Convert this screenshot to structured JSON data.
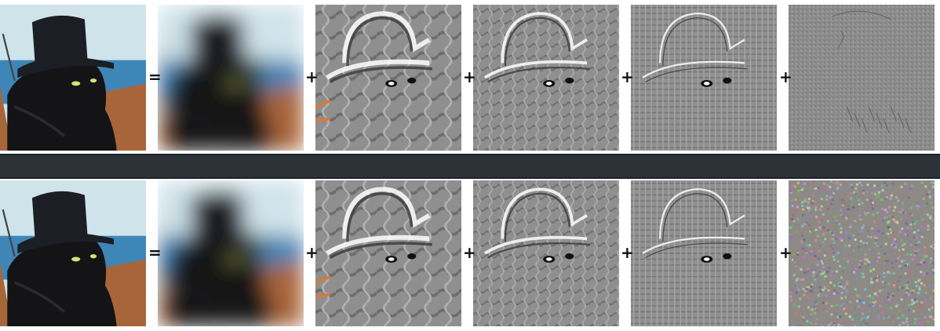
{
  "rows": [
    {
      "id": "top",
      "operators": [
        "=",
        "+",
        "+",
        "+",
        "+"
      ],
      "panels": [
        {
          "kind": "original-photo",
          "icon": "cat-in-hat-photo"
        },
        {
          "kind": "lowpass-blur",
          "icon": "blurred-cat-photo"
        },
        {
          "kind": "bandpass-1",
          "icon": "coarse-detail-band"
        },
        {
          "kind": "bandpass-2",
          "icon": "medium-detail-band"
        },
        {
          "kind": "bandpass-3",
          "icon": "fine-detail-band"
        },
        {
          "kind": "residual-highpass",
          "icon": "residual-edges-band"
        }
      ]
    },
    {
      "id": "bottom",
      "operators": [
        "=",
        "+",
        "+",
        "+",
        "+"
      ],
      "panels": [
        {
          "kind": "original-photo",
          "icon": "cat-in-hat-photo"
        },
        {
          "kind": "lowpass-blur",
          "icon": "blurred-cat-photo"
        },
        {
          "kind": "bandpass-1",
          "icon": "coarse-detail-band"
        },
        {
          "kind": "bandpass-2",
          "icon": "medium-detail-band"
        },
        {
          "kind": "bandpass-3",
          "icon": "fine-detail-band"
        },
        {
          "kind": "residual-noise",
          "icon": "color-noise-band"
        }
      ]
    }
  ],
  "colors": {
    "separator": "#2b3338",
    "sky": "#cfe3ea",
    "sea": "#3f86b8",
    "boat": "#a8653a",
    "cat": "#141416",
    "eye": "#d8e070",
    "filter_gray": "#8e8e8e"
  }
}
